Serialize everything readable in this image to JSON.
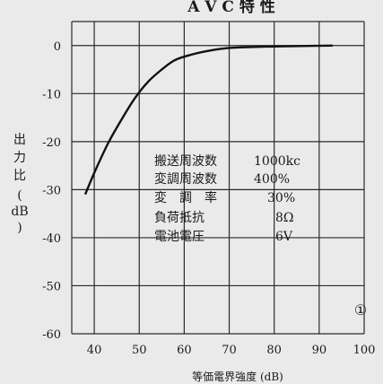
{
  "chart_data": {
    "type": "line",
    "title": "A V C 特 性",
    "ylabel": "出力比(dB)",
    "xlabel": "等価電界強度 (dB)",
    "xlim": [
      35,
      100
    ],
    "ylim": [
      -60,
      5
    ],
    "xticks": [
      "40",
      "50",
      "60",
      "70",
      "80",
      "90",
      "100"
    ],
    "yticks": [
      "0",
      "-10",
      "-20",
      "-30",
      "-40",
      "-50",
      "-60"
    ],
    "grid": true,
    "series": [
      {
        "x": [
          38,
          40,
          43,
          46,
          49,
          52,
          55,
          58,
          62,
          66,
          70,
          75,
          80,
          86,
          93
        ],
        "y": [
          -31,
          -26.5,
          -20.5,
          -15.5,
          -11,
          -7.5,
          -5,
          -3,
          -1.8,
          -1.0,
          -0.5,
          -0.3,
          -0.2,
          -0.1,
          0
        ]
      }
    ],
    "annotations": {
      "conditions": [
        {
          "label": "搬送周波数",
          "value": "1000kc"
        },
        {
          "label": "変調周波数",
          "value": "400%"
        },
        {
          "label": "変　調　率",
          "value": "30%"
        },
        {
          "label": "負荷抵抗",
          "value": "8Ω"
        },
        {
          "label": "電池電圧",
          "value": "6V"
        }
      ],
      "figure_mark": "①"
    }
  }
}
